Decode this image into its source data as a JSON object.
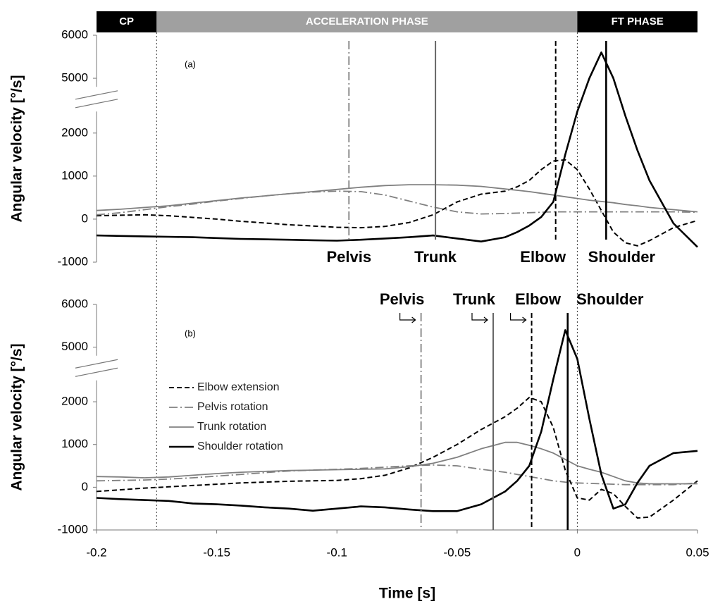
{
  "phase_bar": [
    {
      "label": "CP",
      "start": -0.2,
      "end": -0.175,
      "color": "#000000"
    },
    {
      "label": "ACCELERATION PHASE",
      "start": -0.175,
      "end": 0,
      "color": "#a0a0a0"
    },
    {
      "label": "FT PHASE",
      "start": 0,
      "end": 0.05,
      "color": "#000000"
    }
  ],
  "chart_data": [
    {
      "type": "line",
      "panel_label": "(a)",
      "y_label": "Angular velocity [°/s]",
      "xlim": [
        -0.2,
        0.05
      ],
      "ylim": [
        -1000,
        6000
      ],
      "axis_break": [
        2500,
        4800
      ],
      "yticks": [
        -1000,
        0,
        1000,
        2000,
        5000,
        6000
      ],
      "x": [
        -0.2,
        -0.19,
        -0.18,
        -0.17,
        -0.16,
        -0.15,
        -0.14,
        -0.13,
        -0.12,
        -0.11,
        -0.1,
        -0.09,
        -0.08,
        -0.07,
        -0.06,
        -0.05,
        -0.04,
        -0.03,
        -0.025,
        -0.02,
        -0.015,
        -0.01,
        -0.005,
        0,
        0.005,
        0.01,
        0.015,
        0.02,
        0.025,
        0.03,
        0.04,
        0.05
      ],
      "series": [
        {
          "color": "#000000",
          "style": "dashed",
          "values": [
            80,
            90,
            100,
            80,
            40,
            0,
            -50,
            -90,
            -130,
            -160,
            -190,
            -200,
            -170,
            -80,
            100,
            400,
            580,
            650,
            750,
            900,
            1150,
            1350,
            1380,
            1150,
            700,
            200,
            -300,
            -550,
            -620,
            -500,
            -200,
            -30
          ]
        },
        {
          "color": "#808080",
          "style": "dashdot",
          "values": [
            100,
            150,
            220,
            290,
            350,
            420,
            480,
            540,
            590,
            630,
            650,
            640,
            560,
            420,
            280,
            170,
            120,
            130,
            140,
            150,
            160,
            170,
            170,
            170,
            170,
            170,
            170,
            170,
            170,
            170,
            170,
            160
          ]
        },
        {
          "color": "#808080",
          "style": "solid",
          "values": [
            200,
            230,
            270,
            310,
            370,
            430,
            490,
            540,
            590,
            640,
            690,
            740,
            780,
            800,
            800,
            790,
            760,
            700,
            670,
            640,
            600,
            560,
            520,
            480,
            440,
            410,
            380,
            340,
            310,
            270,
            220,
            170
          ]
        },
        {
          "color": "#000000",
          "style": "thick",
          "values": [
            -380,
            -390,
            -400,
            -410,
            -420,
            -440,
            -460,
            -470,
            -480,
            -490,
            -500,
            -480,
            -450,
            -420,
            -380,
            -450,
            -520,
            -420,
            -300,
            -150,
            50,
            400,
            1500,
            2500,
            5000,
            5600,
            5000,
            2400,
            1600,
            900,
            -100,
            -650
          ]
        }
      ],
      "peaks": [
        {
          "label": "Pelvis",
          "x": -0.095,
          "style": "dashdot"
        },
        {
          "label": "Trunk",
          "x": -0.059,
          "style": "gray"
        },
        {
          "label": "Elbow",
          "x": -0.009,
          "style": "dashed"
        },
        {
          "label": "Shoulder",
          "x": 0.012,
          "style": "thick"
        }
      ]
    },
    {
      "type": "line",
      "panel_label": "(b)",
      "y_label": "Angular velocity [°/s]",
      "x_label": "Time [s]",
      "xlim": [
        -0.2,
        0.05
      ],
      "ylim": [
        -1000,
        6000
      ],
      "axis_break": [
        2500,
        4800
      ],
      "xticks": [
        -0.2,
        -0.15,
        -0.1,
        -0.05,
        0,
        0.05
      ],
      "yticks": [
        -1000,
        0,
        1000,
        2000,
        5000,
        6000
      ],
      "x": [
        -0.2,
        -0.19,
        -0.18,
        -0.17,
        -0.16,
        -0.15,
        -0.14,
        -0.13,
        -0.12,
        -0.11,
        -0.1,
        -0.09,
        -0.08,
        -0.07,
        -0.06,
        -0.05,
        -0.04,
        -0.03,
        -0.025,
        -0.02,
        -0.015,
        -0.01,
        -0.005,
        0,
        0.005,
        0.01,
        0.015,
        0.02,
        0.025,
        0.03,
        0.04,
        0.05
      ],
      "series": [
        {
          "name": "Elbow extension",
          "color": "#000000",
          "style": "dashed",
          "values": [
            -100,
            -60,
            -20,
            10,
            40,
            70,
            100,
            120,
            140,
            150,
            160,
            200,
            280,
            450,
            700,
            1000,
            1350,
            1650,
            1850,
            2100,
            2000,
            1400,
            400,
            -250,
            -300,
            -50,
            -150,
            -450,
            -720,
            -700,
            -300,
            150
          ]
        },
        {
          "name": "Pelvis rotation",
          "color": "#808080",
          "style": "dashdot",
          "values": [
            150,
            160,
            170,
            190,
            220,
            260,
            300,
            340,
            380,
            400,
            420,
            440,
            470,
            500,
            520,
            500,
            420,
            350,
            300,
            250,
            200,
            150,
            120,
            100,
            90,
            80,
            70,
            60,
            60,
            60,
            60,
            100
          ]
        },
        {
          "name": "Trunk rotation",
          "color": "#808080",
          "style": "solid",
          "values": [
            250,
            240,
            220,
            240,
            280,
            320,
            350,
            370,
            390,
            400,
            410,
            420,
            430,
            480,
            560,
            700,
            900,
            1050,
            1050,
            980,
            900,
            800,
            650,
            500,
            420,
            350,
            250,
            150,
            100,
            80,
            80,
            80
          ]
        },
        {
          "name": "Shoulder rotation",
          "color": "#000000",
          "style": "thick",
          "values": [
            -250,
            -280,
            -300,
            -320,
            -380,
            -400,
            -430,
            -470,
            -500,
            -550,
            -500,
            -450,
            -470,
            -520,
            -560,
            -560,
            -400,
            -100,
            150,
            500,
            1300,
            2600,
            5400,
            4500,
            1600,
            300,
            -500,
            -400,
            100,
            500,
            800,
            850
          ]
        }
      ],
      "peaks": [
        {
          "label": "Pelvis",
          "x": -0.065,
          "style": "dashdot"
        },
        {
          "label": "Trunk",
          "x": -0.035,
          "style": "gray"
        },
        {
          "label": "Elbow",
          "x": -0.019,
          "style": "dashed"
        },
        {
          "label": "Shoulder",
          "x": -0.004,
          "style": "thick"
        }
      ]
    }
  ]
}
